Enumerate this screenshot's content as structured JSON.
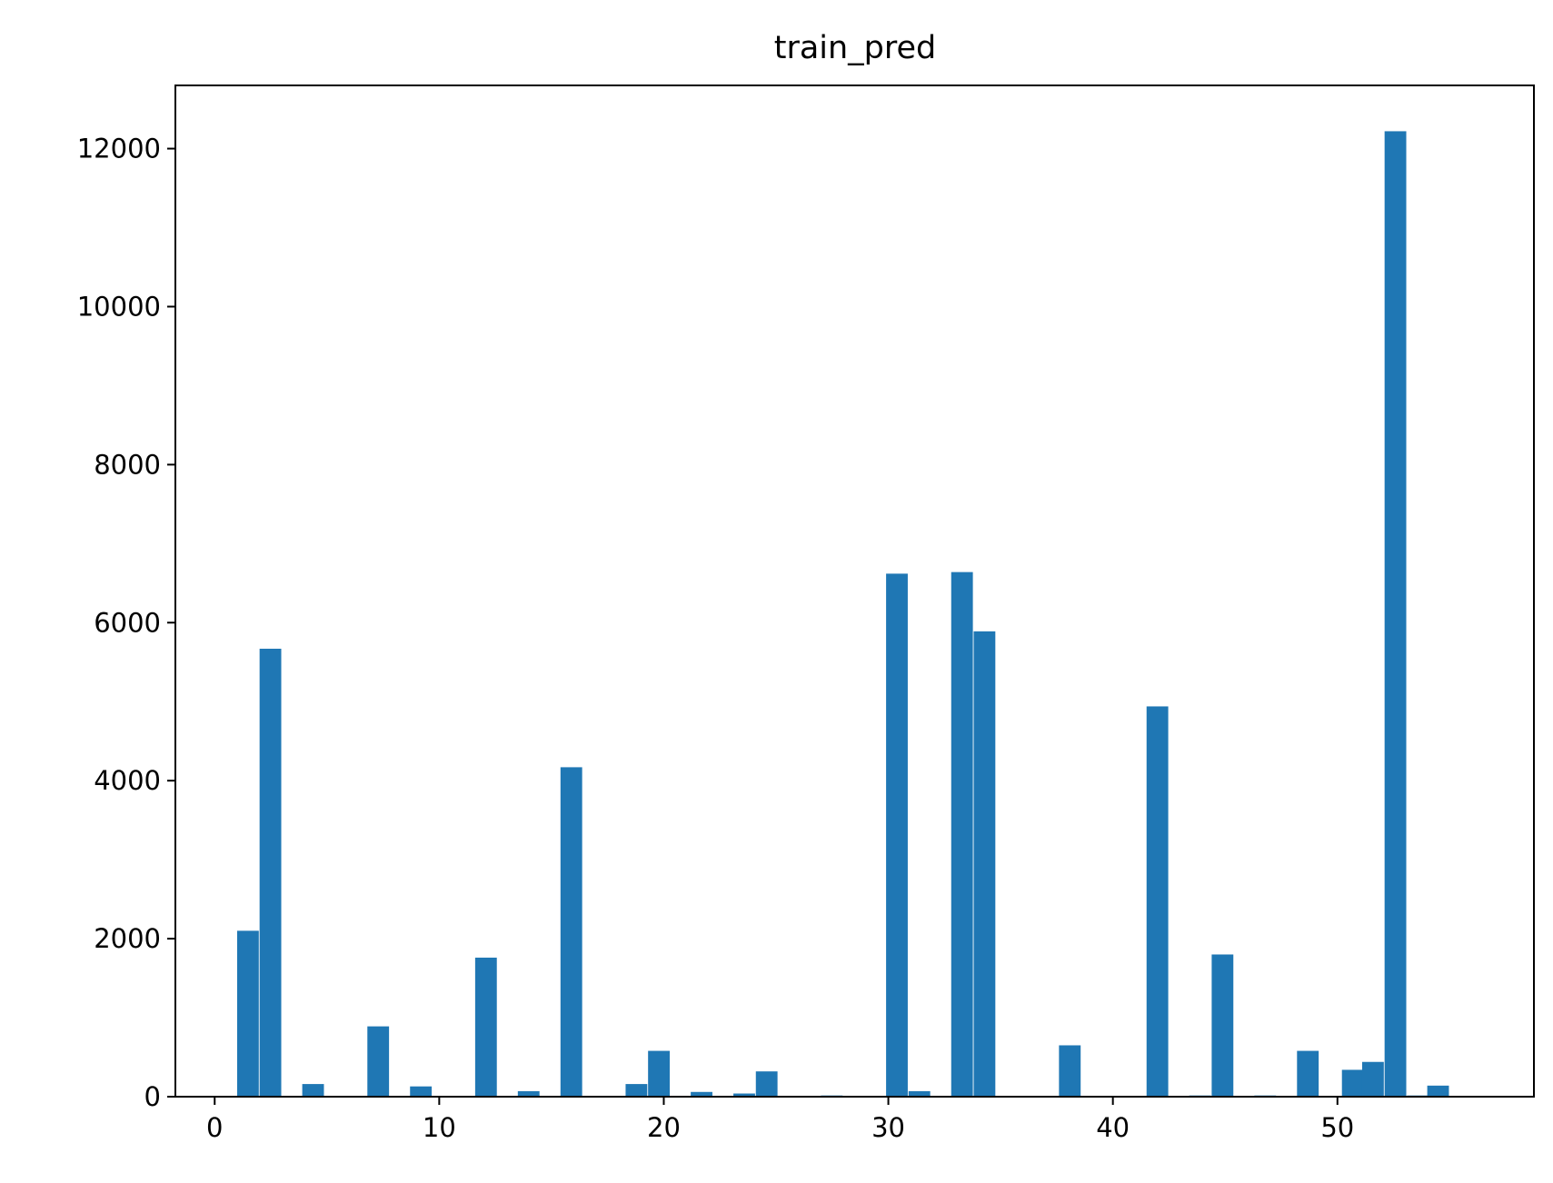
{
  "chart_data": {
    "type": "bar",
    "title": "train_pred",
    "xlabel": "",
    "ylabel": "",
    "xlim": [
      -1.75,
      58.75
    ],
    "ylim": [
      0,
      12800
    ],
    "bin_width": 0.9649,
    "bar_color": "#1f77b4",
    "grid": false,
    "legend": "none",
    "x_ticks": [
      0,
      10,
      20,
      30,
      40,
      50
    ],
    "y_ticks": [
      0,
      2000,
      4000,
      6000,
      8000,
      10000,
      12000
    ],
    "bins": [
      {
        "x": 1.0,
        "value": 2100
      },
      {
        "x": 2.0,
        "value": 5670
      },
      {
        "x": 3.9,
        "value": 160
      },
      {
        "x": 6.8,
        "value": 890
      },
      {
        "x": 8.7,
        "value": 130
      },
      {
        "x": 11.6,
        "value": 1760
      },
      {
        "x": 13.5,
        "value": 70
      },
      {
        "x": 15.4,
        "value": 4170
      },
      {
        "x": 18.3,
        "value": 160
      },
      {
        "x": 19.3,
        "value": 580
      },
      {
        "x": 21.2,
        "value": 60
      },
      {
        "x": 23.1,
        "value": 40
      },
      {
        "x": 24.1,
        "value": 320
      },
      {
        "x": 27.0,
        "value": 15
      },
      {
        "x": 29.9,
        "value": 6620
      },
      {
        "x": 30.9,
        "value": 70
      },
      {
        "x": 32.8,
        "value": 6640
      },
      {
        "x": 33.8,
        "value": 5890
      },
      {
        "x": 37.6,
        "value": 650
      },
      {
        "x": 41.5,
        "value": 4940
      },
      {
        "x": 43.4,
        "value": 15
      },
      {
        "x": 44.4,
        "value": 1800
      },
      {
        "x": 46.3,
        "value": 15
      },
      {
        "x": 48.2,
        "value": 580
      },
      {
        "x": 50.2,
        "value": 340
      },
      {
        "x": 51.1,
        "value": 440
      },
      {
        "x": 52.1,
        "value": 12220
      },
      {
        "x": 53.1,
        "value": 15
      },
      {
        "x": 54.0,
        "value": 140
      }
    ]
  }
}
